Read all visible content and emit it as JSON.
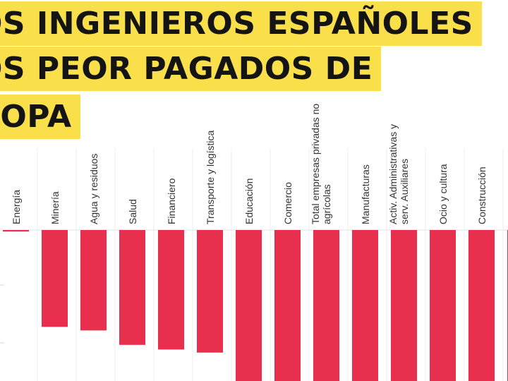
{
  "headline": {
    "line1": "OS INGENIEROS ESPAÑOLES",
    "line2": "OS PEOR PAGADOS DE",
    "line3": "ROPA"
  },
  "colors": {
    "bar": "#e8304e",
    "highlight": "#f9e04b",
    "grid": "#d9d9d9",
    "text": "#333333"
  },
  "chart_data": {
    "type": "bar",
    "categories": [
      [
        "Energía"
      ],
      [
        "Minería"
      ],
      [
        "Agua y residuos"
      ],
      [
        "Salud"
      ],
      [
        "Financiero"
      ],
      [
        "Transporte y logística"
      ],
      [
        "Educación"
      ],
      [
        "Comercio"
      ],
      [
        "Total empresas privadas no",
        "agrícolas"
      ],
      [
        "Manufacturas"
      ],
      [
        "Activ. Administrativas y",
        "serv. Auxiliares"
      ],
      [
        "Ocio y cultura"
      ],
      [
        "Construcción"
      ],
      [
        ""
      ]
    ],
    "values": [
      -0.3,
      -18.8,
      -19.5,
      -22.3,
      -23.2,
      -23.8,
      -30,
      -30,
      -30,
      -30,
      -30,
      -30,
      -30,
      -30
    ],
    "xlabel": "",
    "ylabel": "",
    "ylim": [
      -30,
      0
    ]
  }
}
